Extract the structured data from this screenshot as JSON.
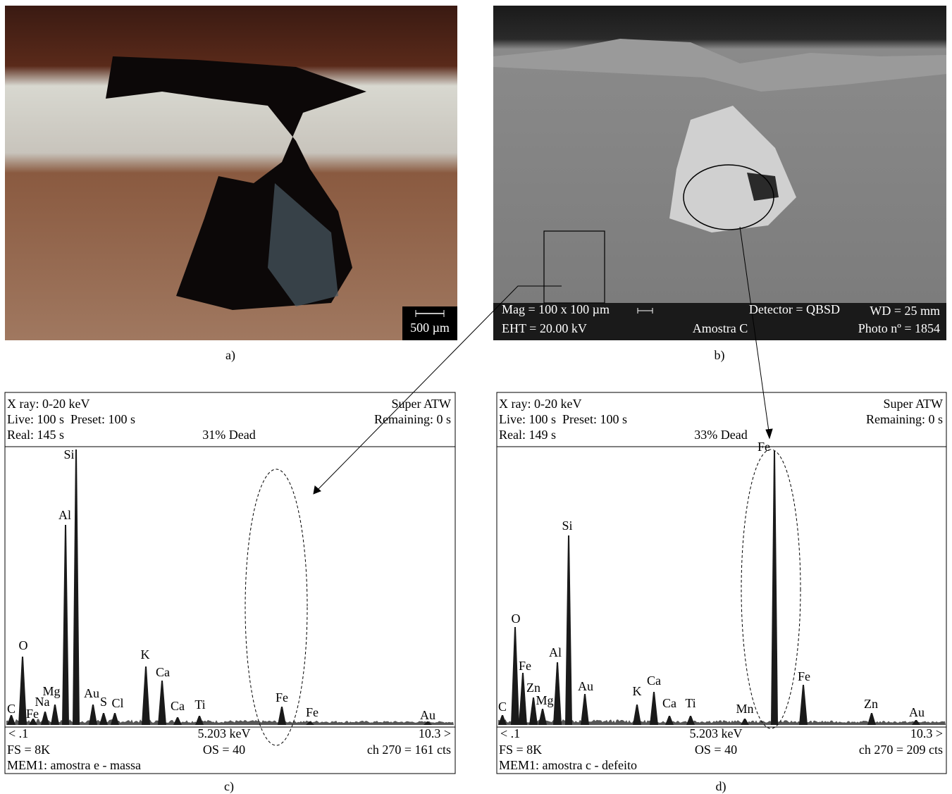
{
  "panels": {
    "a": {
      "caption": "a)",
      "scale_bar": "500 µm"
    },
    "b": {
      "caption": "b)",
      "info": [
        "Mag = 100 x 100 µm",
        "Detector = QBSD",
        "WD = 25 mm",
        "EHT = 20.00 kV",
        "Amostra C",
        "Photo nº = 1854"
      ]
    },
    "c": {
      "caption": "c)",
      "header": [
        "X ray: 0-20 keV",
        "Super ATW",
        "Live: 100 s  Preset: 100 s",
        "Remaining: 0 s",
        "Real: 145 s",
        "31% Dead"
      ],
      "peaks": [
        "C",
        "O",
        "Fe",
        "Na",
        "Mg",
        "Al",
        "Si",
        "Au",
        "S",
        "Cl",
        "K",
        "Ca",
        "Ca",
        "Ti",
        "Fe",
        "Fe",
        "Au"
      ],
      "footer": [
        "< .1",
        "5.203 keV",
        "10.3 >",
        "FS = 8K",
        "OS = 40",
        "ch 270 = 161 cts",
        "MEM1: amostra e - massa"
      ]
    },
    "d": {
      "caption": "d)",
      "header": [
        "X ray: 0-20 keV",
        "Super ATW",
        "Live: 100 s  Preset: 100 s",
        "Remaining: 0 s",
        "Real: 149 s",
        "33% Dead"
      ],
      "peaks": [
        "C",
        "O",
        "Fe",
        "Zn",
        "Mg",
        "Al",
        "Si",
        "Au",
        "K",
        "Ca",
        "Ca",
        "Ti",
        "Mn",
        "Fe",
        "Fe",
        "Zn",
        "Au"
      ],
      "footer": [
        "< .1",
        "5.203 keV",
        "10.3 >",
        "FS = 8K",
        "OS = 40",
        "ch 270 = 209 cts",
        "MEM1: amostra c - defeito"
      ]
    }
  }
}
